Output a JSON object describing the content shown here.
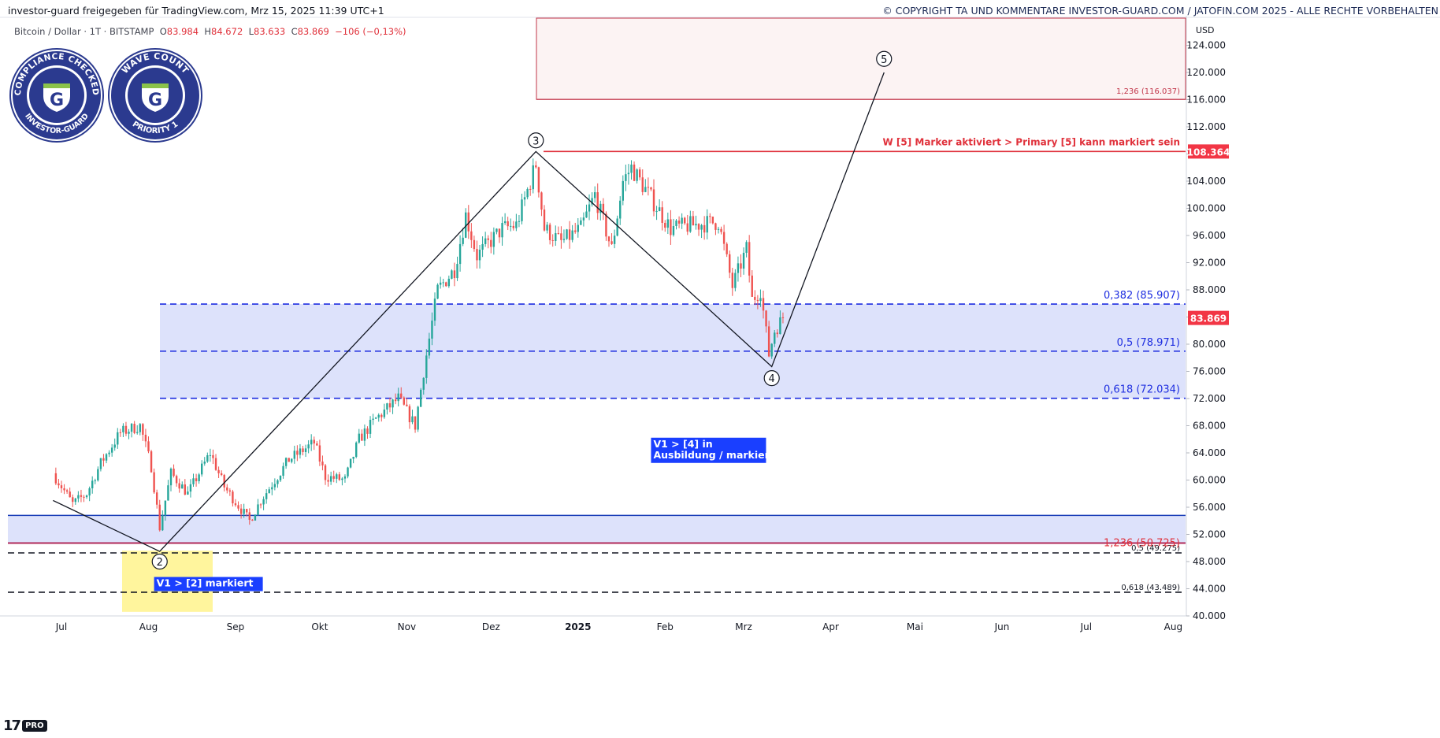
{
  "header": {
    "left_text": "investor-guard freigegeben für TradingView.com, Mrz 15, 2025 11:39 UTC+1",
    "right_text": "© COPYRIGHT TA UND KOMMENTARE INVESTOR-GUARD.COM / JATOFIN.COM 2025 - ALLE RECHTE VORBEHALTEN"
  },
  "symbol": {
    "name": "Bitcoin / Dollar · 1T · BITSTAMP",
    "o_label": "O",
    "o": "83.984",
    "h_label": "H",
    "h": "84.672",
    "l_label": "L",
    "l": "83.633",
    "c_label": "C",
    "c": "83.869",
    "change": "−106 (−0,13%)"
  },
  "badges": [
    {
      "top": "COMPLIANCE CHECKED",
      "bottom": "INVESTOR-GUARD",
      "letter": "G"
    },
    {
      "top": "WAVE COUNT",
      "bottom": "PRIORITY 1",
      "letter": "G"
    }
  ],
  "logo": {
    "mark": "17",
    "pro": "PRO"
  },
  "colors": {
    "up": "#26a69a",
    "down": "#ef5350",
    "fib_blue": "#1e2ee0",
    "zone_fill": "#dde2fb",
    "red_line": "#e0313b",
    "dark_blue": "#1a3fb8",
    "box_blue": "#1a3fff",
    "yellow": "#fff59d",
    "price_tag": "#f23645"
  },
  "chart_data": {
    "type": "candlestick",
    "title": "Bitcoin / Dollar · 1T · BITSTAMP",
    "currency": "USD",
    "ylim": [
      40000,
      128000
    ],
    "y_ticks": [
      "124.000",
      "120.000",
      "116.000",
      "112.000",
      "108.000",
      "104.000",
      "100.000",
      "96.000",
      "92.000",
      "88.000",
      "84.000",
      "80.000",
      "76.000",
      "72.000",
      "68.000",
      "64.000",
      "60.000",
      "56.000",
      "52.000",
      "48.000",
      "44.000",
      "40.000"
    ],
    "y_tick_values": [
      124000,
      120000,
      116000,
      112000,
      108000,
      104000,
      100000,
      96000,
      92000,
      88000,
      84000,
      80000,
      76000,
      72000,
      68000,
      64000,
      60000,
      56000,
      52000,
      48000,
      44000,
      40000
    ],
    "x_labels": [
      "Jul",
      "Aug",
      "Sep",
      "Okt",
      "Nov",
      "Dez",
      "2025",
      "Feb",
      "Mrz",
      "Apr",
      "Mai",
      "Jun",
      "Jul",
      "Aug"
    ],
    "x_label_dates": [
      "2024-07-01",
      "2024-08-01",
      "2024-09-01",
      "2024-10-01",
      "2024-11-01",
      "2024-12-01",
      "2025-01-01",
      "2025-02-01",
      "2025-03-01",
      "2025-04-01",
      "2025-05-01",
      "2025-06-01",
      "2025-07-01",
      "2025-08-01"
    ],
    "price_path": [
      [
        "2024-06-28",
        61000
      ],
      [
        "2024-07-05",
        56500
      ],
      [
        "2024-07-10",
        58000
      ],
      [
        "2024-07-15",
        62500
      ],
      [
        "2024-07-22",
        67000
      ],
      [
        "2024-07-29",
        68000
      ],
      [
        "2024-08-02",
        62000
      ],
      [
        "2024-08-05",
        53000
      ],
      [
        "2024-08-09",
        61000
      ],
      [
        "2024-08-15",
        58000
      ],
      [
        "2024-08-23",
        64000
      ],
      [
        "2024-08-28",
        59000
      ],
      [
        "2024-09-06",
        54000
      ],
      [
        "2024-09-10",
        57000
      ],
      [
        "2024-09-20",
        63000
      ],
      [
        "2024-09-29",
        65500
      ],
      [
        "2024-10-03",
        60500
      ],
      [
        "2024-10-10",
        60000
      ],
      [
        "2024-10-15",
        66000
      ],
      [
        "2024-10-21",
        69000
      ],
      [
        "2024-10-29",
        72000
      ],
      [
        "2024-11-04",
        68000
      ],
      [
        "2024-11-07",
        76000
      ],
      [
        "2024-11-12",
        88000
      ],
      [
        "2024-11-18",
        91000
      ],
      [
        "2024-11-22",
        99000
      ],
      [
        "2024-11-26",
        93000
      ],
      [
        "2024-12-05",
        97000
      ],
      [
        "2024-12-10",
        97500
      ],
      [
        "2024-12-17",
        106500
      ],
      [
        "2024-12-20",
        97000
      ],
      [
        "2024-12-26",
        95000
      ],
      [
        "2025-01-02",
        97000
      ],
      [
        "2025-01-07",
        102000
      ],
      [
        "2025-01-13",
        94000
      ],
      [
        "2025-01-17",
        104000
      ],
      [
        "2025-01-20",
        106000
      ],
      [
        "2025-01-27",
        101500
      ],
      [
        "2025-02-03",
        97000
      ],
      [
        "2025-02-10",
        97500
      ],
      [
        "2025-02-20",
        98000
      ],
      [
        "2025-02-25",
        88500
      ],
      [
        "2025-03-02",
        94000
      ],
      [
        "2025-03-04",
        86500
      ],
      [
        "2025-03-07",
        88000
      ],
      [
        "2025-03-10",
        78500
      ],
      [
        "2025-03-12",
        82000
      ],
      [
        "2025-03-15",
        83869
      ]
    ],
    "last_price": 83869,
    "last_price_label": "83.869",
    "marker_price_label": "108.364",
    "wave_labels": [
      {
        "label": "2",
        "date": "2024-08-05",
        "price": 48000
      },
      {
        "label": "3",
        "date": "2024-12-17",
        "price": 110000
      },
      {
        "label": "4",
        "date": "2025-03-11",
        "price": 75000
      },
      {
        "label": "5",
        "date": "2025-04-20",
        "price": 122000
      }
    ],
    "wave_path": [
      [
        "2024-06-28",
        57000
      ],
      [
        "2024-08-05",
        49500
      ],
      [
        "2024-12-17",
        108364
      ],
      [
        "2025-03-11",
        76700
      ],
      [
        "2025-04-20",
        120000
      ]
    ],
    "fib_levels": [
      {
        "label": "0,382 (85.907)",
        "price": 85907
      },
      {
        "label": "0,5 (78.971)",
        "price": 78971
      },
      {
        "label": "0,618 (72.034)",
        "price": 72034
      }
    ],
    "lower_fib_levels": [
      {
        "label": "0,5 (49.275)",
        "price": 49275
      },
      {
        "label": "0,618 (43.489)",
        "price": 43489
      }
    ],
    "upper_target": {
      "label": "1,236 (116.037)",
      "price": 116037,
      "top_price": 128000
    },
    "lower_target": {
      "label": "1,236 (50.725)",
      "price": 50725,
      "top_price": 54800
    },
    "marker_line": {
      "label": "W [5] Marker aktiviert > Primary [5] kann markiert sein",
      "price": 108364
    },
    "annotations": [
      {
        "text_lines": [
          "V1 > [4] in",
          "Ausbildung / markiert"
        ],
        "date": "2025-01-27",
        "price": 66000
      },
      {
        "text_lines": [
          "V1 > [2] markiert"
        ],
        "date": "2024-08-03",
        "price": 45500
      }
    ]
  }
}
